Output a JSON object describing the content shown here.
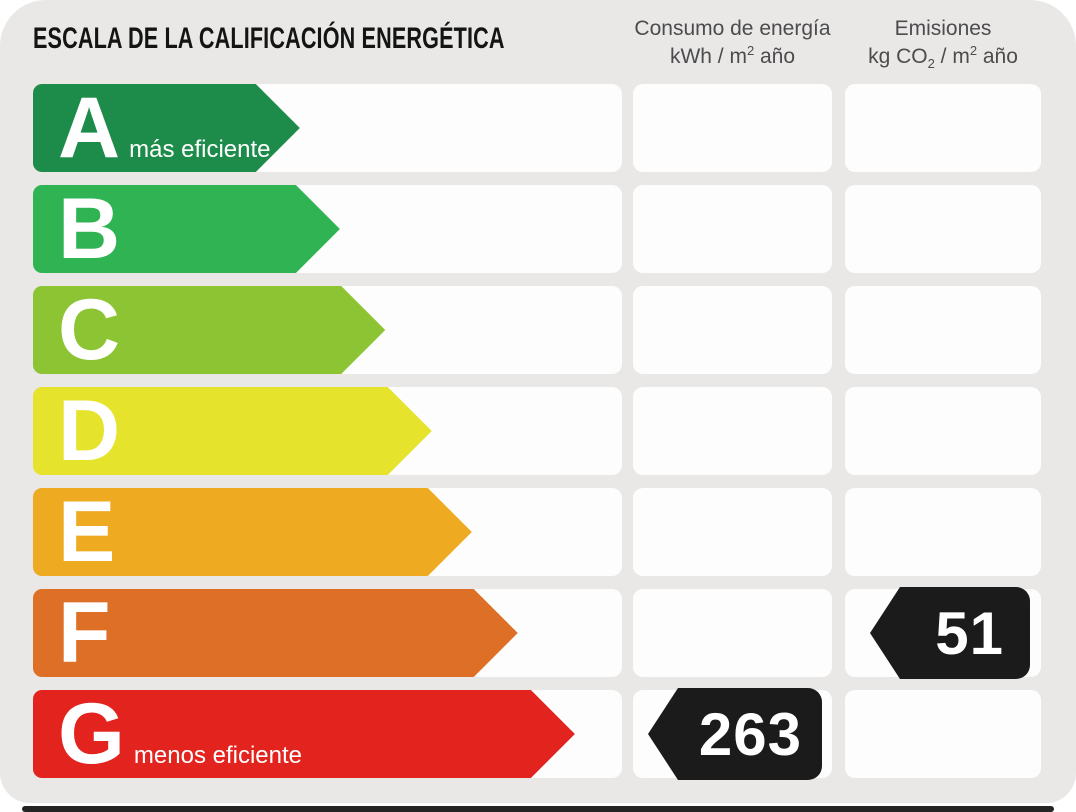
{
  "title": "ESCALA DE LA CALIFICACIÓN ENERGÉTICA",
  "columns": {
    "consumption": {
      "title": "Consumo de energía",
      "unit_parts": {
        "p1": "kWh / m",
        "sup": "2",
        "p2": " año"
      }
    },
    "emissions": {
      "title": "Emisiones",
      "unit_parts": {
        "p1": "kg CO",
        "sub": "2",
        "p2": " / m",
        "sup": "2",
        "p3": " año"
      }
    }
  },
  "scale": {
    "rows": [
      {
        "letter": "A",
        "label": "más eficiente",
        "color": "#1d8c4b",
        "width_pct": 45.3,
        "consumption": null,
        "emissions": null
      },
      {
        "letter": "B",
        "label": "",
        "color": "#2fb353",
        "width_pct": 52.1,
        "consumption": null,
        "emissions": null
      },
      {
        "letter": "C",
        "label": "",
        "color": "#8cc434",
        "width_pct": 59.8,
        "consumption": null,
        "emissions": null
      },
      {
        "letter": "D",
        "label": "",
        "color": "#e5e32c",
        "width_pct": 67.7,
        "consumption": null,
        "emissions": null
      },
      {
        "letter": "E",
        "label": "",
        "color": "#eeaa20",
        "width_pct": 74.5,
        "consumption": null,
        "emissions": null
      },
      {
        "letter": "F",
        "label": "",
        "color": "#dd7026",
        "width_pct": 82.3,
        "consumption": null,
        "emissions": 51
      },
      {
        "letter": "G",
        "label": "menos eficiente",
        "color": "#e2231e",
        "width_pct": 92.0,
        "consumption": 263,
        "emissions": null
      }
    ]
  },
  "badge_color": "#1b1b1b",
  "chart_data": {
    "type": "bar",
    "title": "ESCALA DE LA CALIFICACIÓN ENERGÉTICA",
    "categories": [
      "A",
      "B",
      "C",
      "D",
      "E",
      "F",
      "G"
    ],
    "series": [
      {
        "name": "Consumo de energía kWh / m2 año",
        "values": [
          null,
          null,
          null,
          null,
          null,
          null,
          263
        ]
      },
      {
        "name": "Emisiones kg CO2 / m2 año",
        "values": [
          null,
          null,
          null,
          null,
          null,
          51,
          null
        ]
      }
    ],
    "annotations": [
      "A = más eficiente",
      "G = menos eficiente"
    ],
    "bar_colors": [
      "#1d8c4b",
      "#2fb353",
      "#8cc434",
      "#e5e32c",
      "#eeaa20",
      "#dd7026",
      "#e2231e"
    ],
    "legend_position": "none",
    "grid": false
  }
}
